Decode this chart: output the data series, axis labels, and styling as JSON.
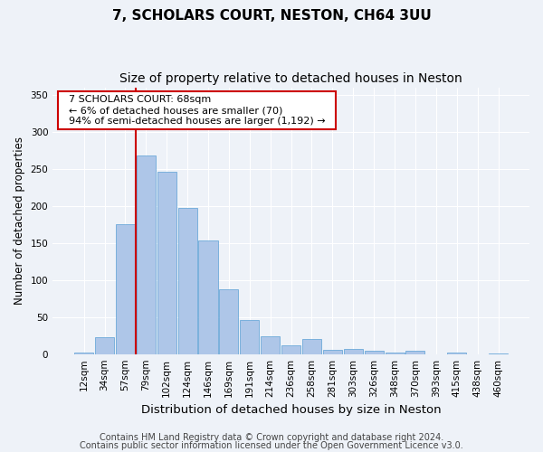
{
  "title1": "7, SCHOLARS COURT, NESTON, CH64 3UU",
  "title2": "Size of property relative to detached houses in Neston",
  "xlabel": "Distribution of detached houses by size in Neston",
  "ylabel": "Number of detached properties",
  "categories": [
    "12sqm",
    "34sqm",
    "57sqm",
    "79sqm",
    "102sqm",
    "124sqm",
    "146sqm",
    "169sqm",
    "191sqm",
    "214sqm",
    "236sqm",
    "258sqm",
    "281sqm",
    "303sqm",
    "326sqm",
    "348sqm",
    "370sqm",
    "393sqm",
    "415sqm",
    "438sqm",
    "460sqm"
  ],
  "values": [
    2,
    23,
    175,
    268,
    246,
    197,
    153,
    88,
    46,
    24,
    12,
    20,
    6,
    7,
    4,
    2,
    5,
    0,
    2,
    0,
    1
  ],
  "bar_color": "#aec6e8",
  "bar_edge_color": "#5a9fd4",
  "vline_color": "#cc0000",
  "annotation_text": "  7 SCHOLARS COURT: 68sqm  \n  ← 6% of detached houses are smaller (70)  \n  94% of semi-detached houses are larger (1,192) →  ",
  "annotation_box_color": "#ffffff",
  "annotation_box_edge": "#cc0000",
  "ylim": [
    0,
    360
  ],
  "yticks": [
    0,
    50,
    100,
    150,
    200,
    250,
    300,
    350
  ],
  "footnote1": "Contains HM Land Registry data © Crown copyright and database right 2024.",
  "footnote2": "Contains public sector information licensed under the Open Government Licence v3.0.",
  "bg_color": "#eef2f8",
  "grid_color": "#ffffff",
  "title1_fontsize": 11,
  "title2_fontsize": 10,
  "xlabel_fontsize": 9.5,
  "ylabel_fontsize": 8.5,
  "tick_fontsize": 7.5,
  "annotation_fontsize": 8,
  "footnote_fontsize": 7
}
